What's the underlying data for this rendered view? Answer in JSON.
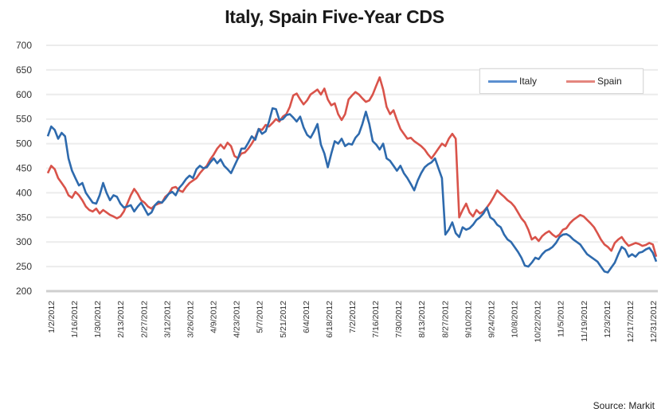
{
  "chart_data": {
    "type": "line",
    "title": "Italy, Spain Five-Year CDS",
    "xlabel": "",
    "ylabel": "",
    "ylim": [
      200,
      700
    ],
    "yticks": [
      200,
      250,
      300,
      350,
      400,
      450,
      500,
      550,
      600,
      650,
      700
    ],
    "grid": true,
    "legend_position": "top-right",
    "source": "Source: Markit",
    "x_tick_labels": [
      "1/2/2012",
      "1/16/2012",
      "1/30/2012",
      "2/13/2012",
      "2/27/2012",
      "3/12/2012",
      "3/26/2012",
      "4/9/2012",
      "4/23/2012",
      "5/7/2012",
      "5/21/2012",
      "6/4/2012",
      "6/18/2012",
      "7/2/2012",
      "7/16/2012",
      "7/30/2012",
      "8/13/2012",
      "8/27/2012",
      "9/10/2012",
      "9/24/2012",
      "10/8/2012",
      "10/22/2012",
      "11/5/2012",
      "11/19/2012",
      "12/3/2012",
      "12/17/2012",
      "12/31/2012"
    ],
    "series": [
      {
        "name": "Italy",
        "color": "#2e6aad",
        "values": [
          515,
          535,
          528,
          510,
          522,
          515,
          470,
          445,
          430,
          415,
          420,
          400,
          390,
          380,
          378,
          395,
          420,
          400,
          385,
          395,
          392,
          378,
          370,
          372,
          375,
          362,
          372,
          380,
          368,
          355,
          360,
          375,
          382,
          380,
          388,
          398,
          402,
          395,
          410,
          418,
          428,
          435,
          430,
          448,
          455,
          450,
          452,
          462,
          470,
          460,
          468,
          455,
          448,
          440,
          455,
          470,
          490,
          490,
          502,
          515,
          508,
          530,
          520,
          525,
          545,
          572,
          570,
          548,
          550,
          558,
          560,
          553,
          545,
          555,
          533,
          518,
          512,
          525,
          540,
          498,
          480,
          452,
          480,
          505,
          500,
          510,
          495,
          500,
          498,
          512,
          520,
          540,
          565,
          540,
          505,
          498,
          488,
          500,
          470,
          465,
          455,
          445,
          455,
          440,
          430,
          418,
          405,
          425,
          440,
          452,
          458,
          462,
          470,
          450,
          430,
          315,
          325,
          340,
          318,
          310,
          330,
          325,
          328,
          335,
          345,
          350,
          358,
          370,
          350,
          345,
          335,
          330,
          315,
          305,
          300,
          290,
          280,
          268,
          252,
          250,
          258,
          268,
          265,
          275,
          282,
          285,
          290,
          298,
          310,
          315,
          316,
          312,
          305,
          300,
          295,
          285,
          275,
          270,
          265,
          260,
          250,
          240,
          238,
          248,
          258,
          275,
          290,
          285,
          270,
          275,
          270,
          278,
          280,
          285,
          288,
          278,
          260
        ]
      },
      {
        "name": "Spain",
        "color": "#d9534a",
        "values": [
          440,
          455,
          448,
          430,
          420,
          410,
          395,
          390,
          402,
          395,
          385,
          372,
          365,
          362,
          368,
          358,
          365,
          360,
          355,
          352,
          348,
          352,
          362,
          378,
          395,
          408,
          398,
          385,
          380,
          372,
          368,
          375,
          378,
          380,
          392,
          398,
          410,
          412,
          405,
          402,
          412,
          420,
          425,
          430,
          440,
          448,
          455,
          468,
          478,
          490,
          498,
          490,
          502,
          495,
          475,
          470,
          480,
          482,
          490,
          500,
          512,
          530,
          528,
          538,
          535,
          542,
          550,
          545,
          555,
          560,
          575,
          598,
          602,
          590,
          580,
          588,
          600,
          605,
          610,
          600,
          612,
          590,
          578,
          582,
          560,
          548,
          560,
          590,
          598,
          605,
          600,
          592,
          585,
          588,
          600,
          618,
          635,
          610,
          575,
          560,
          568,
          548,
          530,
          520,
          510,
          512,
          505,
          500,
          495,
          488,
          478,
          470,
          480,
          490,
          500,
          495,
          510,
          520,
          510,
          350,
          365,
          378,
          360,
          352,
          365,
          358,
          362,
          370,
          380,
          392,
          405,
          398,
          392,
          385,
          380,
          372,
          360,
          348,
          340,
          325,
          305,
          310,
          302,
          312,
          318,
          322,
          315,
          310,
          315,
          325,
          328,
          338,
          345,
          350,
          355,
          352,
          345,
          338,
          330,
          318,
          305,
          295,
          290,
          282,
          298,
          305,
          310,
          300,
          292,
          295,
          298,
          296,
          292,
          294,
          298,
          295,
          270
        ]
      }
    ]
  }
}
